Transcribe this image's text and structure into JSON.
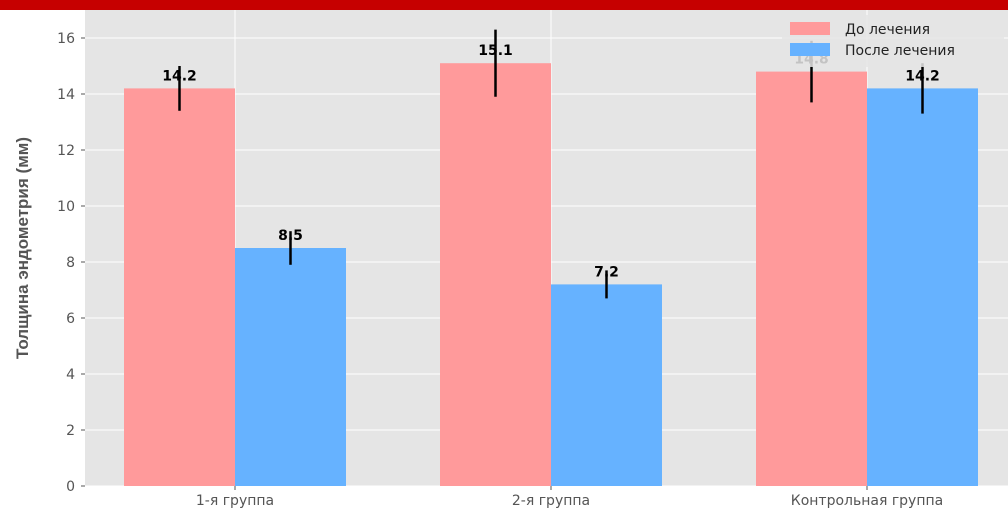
{
  "colors": {
    "top_band": "#c60000",
    "plot_background": "#e5e5e5",
    "grid": "#ffffff",
    "before": "#ff9a9b",
    "after": "#66b2ff",
    "error_bar": "#000000"
  },
  "chart_data": {
    "type": "bar",
    "categories": [
      "1-я группа",
      "2-я группа",
      "Контрольная группа"
    ],
    "series": [
      {
        "name": "До лечения",
        "values": [
          14.2,
          15.1,
          14.8
        ],
        "errors": [
          0.8,
          1.2,
          1.1
        ]
      },
      {
        "name": "После лечения",
        "values": [
          8.5,
          7.2,
          14.2
        ],
        "errors": [
          0.6,
          0.5,
          0.9
        ]
      }
    ],
    "value_labels": [
      [
        "14.2",
        "15.1",
        "14.8"
      ],
      [
        "8.5",
        "7.2",
        "14.2"
      ]
    ],
    "title": "",
    "xlabel": "",
    "ylabel": "Толщина эндометрия (мм)",
    "ylim": [
      0,
      17
    ],
    "yticks": [
      0,
      2,
      4,
      6,
      8,
      10,
      12,
      14,
      16
    ],
    "grid": true,
    "legend": "top-right"
  }
}
